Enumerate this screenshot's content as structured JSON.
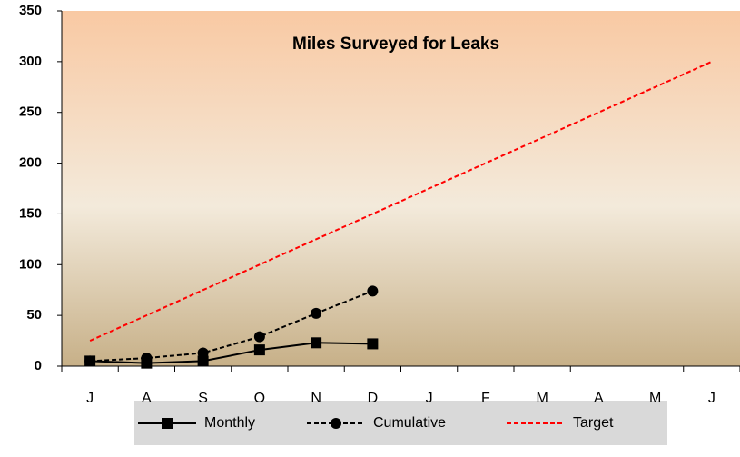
{
  "chart_data": {
    "type": "line",
    "title": "Miles Surveyed for Leaks",
    "categories": [
      "J",
      "A",
      "S",
      "O",
      "N",
      "D",
      "J",
      "F",
      "M",
      "A",
      "M",
      "J"
    ],
    "series": [
      {
        "name": "Monthly",
        "color": "#000000",
        "dash": false,
        "marker": "square",
        "values": [
          5,
          3,
          5,
          16,
          23,
          22,
          null,
          null,
          null,
          null,
          null,
          null
        ]
      },
      {
        "name": "Cumulative",
        "color": "#000000",
        "dash": true,
        "marker": "circle",
        "values": [
          5,
          8,
          13,
          29,
          52,
          74,
          null,
          null,
          null,
          null,
          null,
          null
        ]
      },
      {
        "name": "Target",
        "color": "#ff0000",
        "dash": true,
        "marker": "none",
        "values": [
          25,
          50,
          75,
          100,
          125,
          150,
          175,
          200,
          225,
          250,
          275,
          300
        ]
      }
    ],
    "ylim": [
      0,
      350
    ],
    "yticks": [
      0,
      50,
      100,
      150,
      200,
      250,
      300,
      350
    ],
    "legend": "bottom"
  }
}
